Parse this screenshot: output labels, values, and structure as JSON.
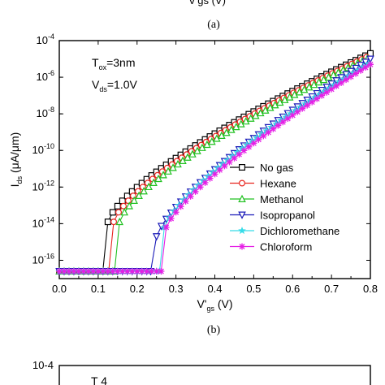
{
  "top_partial": {
    "axis_label_fragment": "V'gs (V)",
    "caption": "(a)"
  },
  "bottom_partial": {
    "y_top_tick": "10-4",
    "annotation_fragment": "T  4"
  },
  "chart_data": {
    "type": "line",
    "caption": "(b)",
    "xlabel": "V'gs (V)",
    "ylabel": "Ids (μA/μm)",
    "xlim": [
      0.0,
      0.8
    ],
    "ylim_log10": [
      -17,
      -4
    ],
    "y_scale": "log",
    "x_ticks": [
      "0.0",
      "0.1",
      "0.2",
      "0.3",
      "0.4",
      "0.5",
      "0.6",
      "0.7",
      "0.8"
    ],
    "y_ticks": [
      {
        "base": "10",
        "exp": "-4",
        "v": -4
      },
      {
        "base": "10",
        "exp": "-6",
        "v": -6
      },
      {
        "base": "10",
        "exp": "-8",
        "v": -8
      },
      {
        "base": "10",
        "exp": "-10",
        "v": -10
      },
      {
        "base": "10",
        "exp": "-12",
        "v": -12
      },
      {
        "base": "10",
        "exp": "-14",
        "v": -14
      },
      {
        "base": "10",
        "exp": "-16",
        "v": -16
      }
    ],
    "annotations": [
      {
        "main": "T",
        "sub": "ox",
        "rest": "=3nm"
      },
      {
        "main": "V",
        "sub": "ds",
        "rest": "=1.0V"
      }
    ],
    "legend_position": "right-center",
    "series": [
      {
        "name": "No gas",
        "color": "#000000",
        "marker": "square",
        "onset": 0.112,
        "x_on": 0.125,
        "y_on": -13.9,
        "k": 0.72
      },
      {
        "name": "Hexane",
        "color": "#e8251f",
        "marker": "circle",
        "onset": 0.127,
        "x_on": 0.14,
        "y_on": -13.9,
        "k": 0.72
      },
      {
        "name": "Methanol",
        "color": "#21c121",
        "marker": "triangle-up",
        "onset": 0.142,
        "x_on": 0.155,
        "y_on": -13.9,
        "k": 0.72
      },
      {
        "name": "Isopropanol",
        "color": "#1a1ab8",
        "marker": "triangle-down",
        "onset": 0.235,
        "x_on": 0.25,
        "y_on": -14.7,
        "k": 0.75
      },
      {
        "name": "Dichloromethane",
        "color": "#36dce8",
        "marker": "star",
        "onset": 0.258,
        "x_on": 0.27,
        "y_on": -14.2,
        "k": 0.76
      },
      {
        "name": "Chloroform",
        "color": "#e51fe5",
        "marker": "asterisk",
        "onset": 0.262,
        "x_on": 0.275,
        "y_on": -14.2,
        "k": 0.78
      }
    ],
    "off_current_log10": -16.6,
    "target_at_xmax_log10": [
      -4.7,
      -4.8,
      -4.9,
      -5.0,
      -5.2,
      -5.3
    ]
  }
}
